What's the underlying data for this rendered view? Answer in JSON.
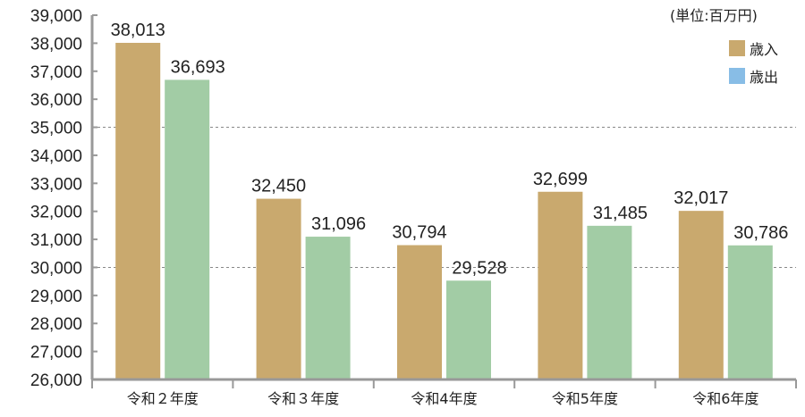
{
  "chart_data": {
    "type": "bar",
    "title": "",
    "unit_label": "(単位:百万円)",
    "categories": [
      "令和２年度",
      "令和３年度",
      "令和4年度",
      "令和5年度",
      "令和6年度"
    ],
    "series": [
      {
        "name": "歳入",
        "values": [
          38013,
          32450,
          30794,
          32699,
          32017
        ],
        "labels": [
          "38,013",
          "32,450",
          "30,794",
          "32,699",
          "32,017"
        ],
        "color": "#c9a96e"
      },
      {
        "name": "歳出",
        "values": [
          36693,
          31096,
          29528,
          31485,
          30786
        ],
        "labels": [
          "36,693",
          "31,096",
          "29,528",
          "31,485",
          "30,786"
        ],
        "color": "#a2cca5"
      }
    ],
    "legend_swatch_colors": [
      "#c9a96e",
      "#88bde6"
    ],
    "ylim": [
      26000,
      39000
    ],
    "yticks": [
      26000,
      27000,
      28000,
      29000,
      30000,
      31000,
      32000,
      33000,
      34000,
      35000,
      36000,
      37000,
      38000,
      39000
    ],
    "ytick_labels": [
      "26,000",
      "27,000",
      "28,000",
      "29,000",
      "30,000",
      "31,000",
      "32,000",
      "33,000",
      "34,000",
      "35,000",
      "36,000",
      "37,000",
      "38,000",
      "39,000"
    ],
    "dashed_gridlines": [
      30000,
      35000
    ],
    "legend_position": "top-right"
  }
}
